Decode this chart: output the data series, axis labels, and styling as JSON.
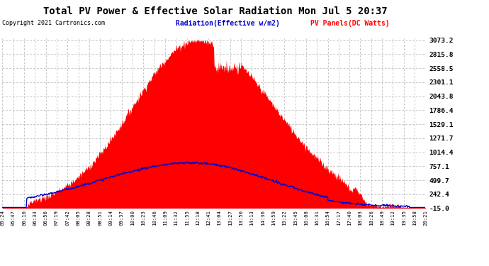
{
  "title": "Total PV Power & Effective Solar Radiation Mon Jul 5 20:37",
  "copyright": "Copyright 2021 Cartronics.com",
  "legend_radiation": "Radiation(Effective w/m2)",
  "legend_pv": "PV Panels(DC Watts)",
  "yticks": [
    -15.0,
    242.4,
    499.7,
    757.1,
    1014.4,
    1271.7,
    1529.1,
    1786.4,
    2043.8,
    2301.1,
    2558.5,
    2815.8,
    3073.2
  ],
  "ymin": -15.0,
  "ymax": 3073.2,
  "xtick_labels": [
    "05:24",
    "05:47",
    "06:10",
    "06:33",
    "06:56",
    "07:19",
    "07:42",
    "08:05",
    "08:28",
    "08:51",
    "09:14",
    "09:37",
    "10:00",
    "10:23",
    "10:46",
    "11:09",
    "11:32",
    "11:55",
    "12:18",
    "12:41",
    "13:04",
    "13:27",
    "13:50",
    "14:13",
    "14:36",
    "14:59",
    "15:22",
    "15:45",
    "16:08",
    "16:31",
    "16:54",
    "17:17",
    "17:40",
    "18:03",
    "18:26",
    "18:49",
    "19:12",
    "19:35",
    "19:58",
    "20:21"
  ],
  "bg_color": "#ffffff",
  "plot_bg_color": "#ffffff",
  "pv_color": "#ff0000",
  "radiation_color": "#0000cc",
  "grid_color": "#b0b0b0",
  "title_color": "#000000",
  "copyright_color": "#000000",
  "legend_radiation_color": "#0000cc",
  "legend_pv_color": "#ff0000"
}
